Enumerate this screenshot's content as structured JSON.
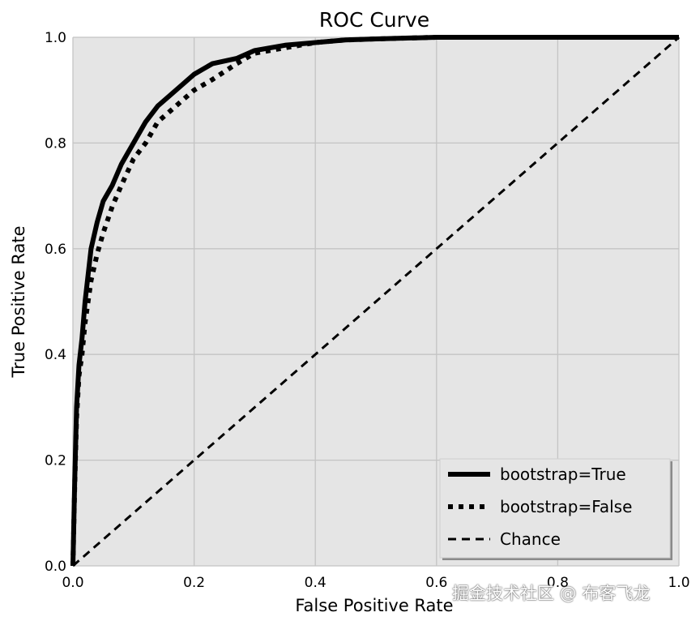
{
  "chart_data": {
    "type": "line",
    "title": "ROC Curve",
    "xlabel": "False Positive Rate",
    "ylabel": "True Positive Rate",
    "xlim": [
      0,
      1
    ],
    "ylim": [
      0,
      1
    ],
    "xticks": [
      "0.0",
      "0.2",
      "0.4",
      "0.6",
      "0.8",
      "1.0"
    ],
    "yticks": [
      "0.0",
      "0.2",
      "0.4",
      "0.6",
      "0.8",
      "1.0"
    ],
    "grid": true,
    "legend_position": "lower-right",
    "background_color": "#e5e5e5",
    "grid_color": "#c4c4c4",
    "series": [
      {
        "name": "bootstrap=True",
        "style": "solid",
        "color": "#000000",
        "x": [
          0.0,
          0.003,
          0.006,
          0.01,
          0.015,
          0.02,
          0.03,
          0.04,
          0.05,
          0.065,
          0.08,
          0.09,
          0.1,
          0.12,
          0.14,
          0.16,
          0.18,
          0.2,
          0.23,
          0.27,
          0.3,
          0.35,
          0.4,
          0.45,
          0.5,
          0.6,
          0.8,
          1.0
        ],
        "y": [
          0.0,
          0.16,
          0.3,
          0.38,
          0.43,
          0.5,
          0.6,
          0.65,
          0.69,
          0.72,
          0.76,
          0.78,
          0.8,
          0.84,
          0.87,
          0.89,
          0.91,
          0.93,
          0.95,
          0.96,
          0.975,
          0.985,
          0.99,
          0.995,
          0.997,
          1.0,
          1.0,
          1.0
        ]
      },
      {
        "name": "bootstrap=False",
        "style": "dotted",
        "color": "#000000",
        "x": [
          0.0,
          0.003,
          0.006,
          0.01,
          0.015,
          0.02,
          0.03,
          0.04,
          0.05,
          0.065,
          0.08,
          0.1,
          0.12,
          0.14,
          0.16,
          0.18,
          0.2,
          0.23,
          0.27,
          0.3,
          0.35,
          0.4,
          0.45,
          0.5,
          0.6,
          0.8,
          1.0
        ],
        "y": [
          0.0,
          0.15,
          0.28,
          0.36,
          0.4,
          0.46,
          0.54,
          0.59,
          0.63,
          0.68,
          0.72,
          0.77,
          0.8,
          0.84,
          0.86,
          0.88,
          0.9,
          0.92,
          0.95,
          0.97,
          0.98,
          0.99,
          0.995,
          0.997,
          1.0,
          1.0,
          1.0
        ]
      },
      {
        "name": "Chance",
        "style": "dashed",
        "color": "#000000",
        "x": [
          0,
          1
        ],
        "y": [
          0,
          1
        ]
      }
    ]
  },
  "watermark": "掘金技术社区 @ 布客飞龙"
}
